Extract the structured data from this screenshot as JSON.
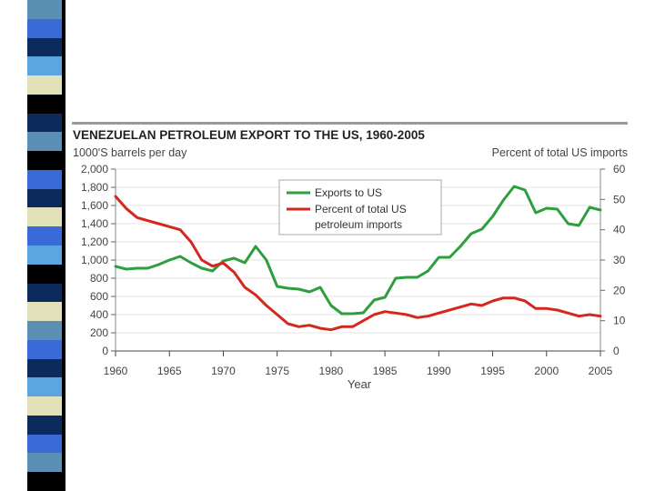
{
  "slide": {
    "stripe_colors": [
      "#5b8fb3",
      "#3a6ad8",
      "#0c2a5b",
      "#5ba5e0",
      "#e2e1b9",
      "#000000",
      "#0c2a5b",
      "#5b8fb3",
      "#000000",
      "#3a6ad8",
      "#0c2a5b",
      "#e2e1b9",
      "#3a6ad8",
      "#5ba5e0",
      "#000000",
      "#0c2a5b",
      "#e2e1b9",
      "#5b8fb3",
      "#3a6ad8",
      "#0c2a5b",
      "#5ba5e0",
      "#e2e1b9",
      "#0c2a5b",
      "#3a6ad8",
      "#5b8fb3",
      "#000000"
    ]
  },
  "chart_data": {
    "type": "line",
    "title": "VENEZUELAN PETROLEUM EXPORT TO THE US, 1960-2005",
    "left_axis_label": "1000'S barrels per day",
    "right_axis_label": "Percent of total US imports",
    "xlabel": "Year",
    "xlim": [
      1960,
      2005
    ],
    "ylim_left": [
      0,
      2000
    ],
    "ylim_right": [
      0,
      60
    ],
    "x_ticks": [
      "1960",
      "1965",
      "1970",
      "1975",
      "1980",
      "1985",
      "1990",
      "1995",
      "2000",
      "2005"
    ],
    "y_ticks_left": [
      "2,000",
      "1,800",
      "1,600",
      "1,400",
      "1,200",
      "1,000",
      "800",
      "600",
      "400",
      "200",
      "0"
    ],
    "y_ticks_right": [
      "60",
      "50",
      "40",
      "30",
      "20",
      "10",
      "0"
    ],
    "legend": [
      {
        "label": "Exports to US",
        "color": "#2e9e3e"
      },
      {
        "label": "Percent of total US",
        "label2": "petroleum imports",
        "color": "#d4281f"
      }
    ],
    "series": [
      {
        "name": "Exports to US",
        "axis": "left",
        "color": "#2e9e3e",
        "x": [
          1960,
          1961,
          1962,
          1963,
          1964,
          1965,
          1966,
          1967,
          1968,
          1969,
          1970,
          1971,
          1972,
          1973,
          1974,
          1975,
          1976,
          1977,
          1978,
          1979,
          1980,
          1981,
          1982,
          1983,
          1984,
          1985,
          1986,
          1987,
          1988,
          1989,
          1990,
          1991,
          1992,
          1993,
          1994,
          1995,
          1996,
          1997,
          1998,
          1999,
          2000,
          2001,
          2002,
          2003,
          2004,
          2005
        ],
        "values": [
          930,
          900,
          910,
          910,
          950,
          1000,
          1040,
          970,
          910,
          880,
          990,
          1020,
          970,
          1150,
          1000,
          710,
          690,
          680,
          650,
          700,
          500,
          410,
          410,
          420,
          560,
          590,
          800,
          810,
          810,
          880,
          1030,
          1030,
          1150,
          1290,
          1340,
          1480,
          1660,
          1810,
          1770,
          1520,
          1570,
          1560,
          1400,
          1380,
          1580,
          1550
        ]
      },
      {
        "name": "Percent of total US petroleum imports",
        "axis": "right",
        "color": "#d4281f",
        "x": [
          1960,
          1961,
          1962,
          1963,
          1964,
          1965,
          1966,
          1967,
          1968,
          1969,
          1970,
          1971,
          1972,
          1973,
          1974,
          1975,
          1976,
          1977,
          1978,
          1979,
          1980,
          1981,
          1982,
          1983,
          1984,
          1985,
          1986,
          1987,
          1988,
          1989,
          1990,
          1991,
          1992,
          1993,
          1994,
          1995,
          1996,
          1997,
          1998,
          1999,
          2000,
          2001,
          2002,
          2003,
          2004,
          2005
        ],
        "values": [
          51,
          47,
          44,
          43,
          42,
          41,
          40,
          36,
          30,
          28,
          29,
          26,
          21,
          18.5,
          15,
          12,
          9,
          8,
          8.5,
          7.5,
          7,
          8,
          8,
          10,
          12,
          13,
          12.5,
          12,
          11,
          11.5,
          12.5,
          13.5,
          14.5,
          15.5,
          15,
          16.5,
          17.5,
          17.5,
          16.5,
          14,
          14,
          13.5,
          12.5,
          11.5,
          12,
          11.5
        ]
      }
    ]
  }
}
